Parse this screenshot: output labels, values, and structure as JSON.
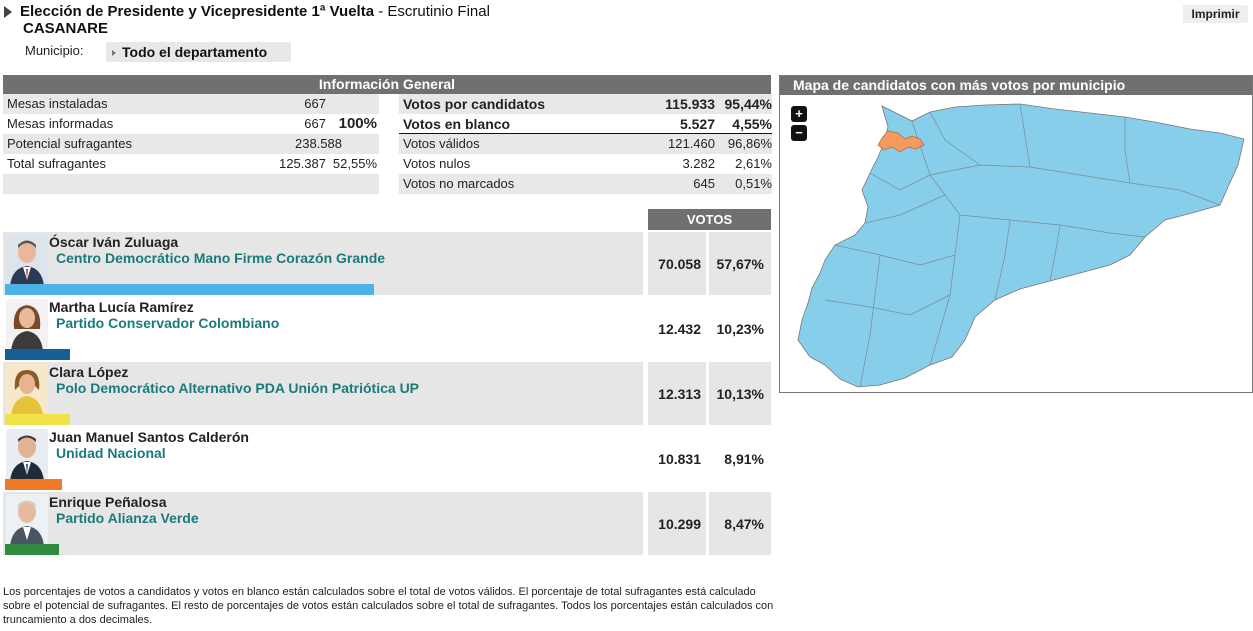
{
  "header": {
    "title_bold": "Elección de Presidente y Vicepresidente 1ª Vuelta",
    "title_rest": " - Escrutinio Final",
    "department": "CASANARE",
    "municipio_label": "Municipio:",
    "municipio_value": "Todo el departamento",
    "print_label": "Imprimir"
  },
  "general": {
    "header": "Información General",
    "left_rows": [
      {
        "label": "Mesas instaladas",
        "value": "667",
        "pct": ""
      },
      {
        "label": "Mesas informadas",
        "value": "667",
        "pct": "100%"
      },
      {
        "label": "Potencial sufragantes",
        "value": "238.588",
        "pct": ""
      },
      {
        "label": "Total sufragantes",
        "value": "125.387",
        "pct": "52,55%"
      }
    ],
    "right_rows": [
      {
        "label": "Votos por candidatos",
        "value": "115.933",
        "pct": "95,44%"
      },
      {
        "label": "Votos en blanco",
        "value": "5.527",
        "pct": "4,55%"
      },
      {
        "label": "Votos válidos",
        "value": "121.460",
        "pct": "96,86%"
      },
      {
        "label": "Votos nulos",
        "value": "3.282",
        "pct": "2,61%"
      },
      {
        "label": "Votos no marcados",
        "value": "645",
        "pct": "0,51%"
      }
    ]
  },
  "votes_header": "VOTOS",
  "candidates": [
    {
      "name": "Óscar Iván Zuluaga",
      "party": "Centro Democrático Mano Firme Corazón Grande",
      "votes": "70.058",
      "pct": "57,67%",
      "share": 57.67,
      "color": "#4db3e6"
    },
    {
      "name": "Martha Lucía Ramírez",
      "party": "Partido Conservador Colombiano",
      "votes": "12.432",
      "pct": "10,23%",
      "share": 10.23,
      "color": "#155f95"
    },
    {
      "name": "Clara López",
      "party": "Polo Democrático Alternativo PDA Unión Patriótica UP",
      "votes": "12.313",
      "pct": "10,13%",
      "share": 10.13,
      "color": "#f2e24a"
    },
    {
      "name": "Juan Manuel Santos Calderón",
      "party": "Unidad Nacional",
      "votes": "10.831",
      "pct": "8,91%",
      "share": 8.91,
      "color": "#ef7a2a"
    },
    {
      "name": "Enrique Peñalosa",
      "party": "Partido Alianza Verde",
      "votes": "10.299",
      "pct": "8,47%",
      "share": 8.47,
      "color": "#2d8a3e"
    }
  ],
  "footnote": "Los porcentajes de votos a candidatos y votos en blanco están calculados sobre el total de votos válidos. El porcentaje de total sufragantes está calculado sobre el potencial de sufragantes. El resto de porcentajes de votos están calculados sobre el total de sufragantes. Todos los porcentajes están calculados con truncamiento a dos decimales.",
  "map": {
    "title": "Mapa de candidatos con más votos por municipio",
    "zoom_in": "+",
    "zoom_out": "−",
    "main_color": "#87ceeb",
    "highlight_color": "#f39a5e"
  }
}
